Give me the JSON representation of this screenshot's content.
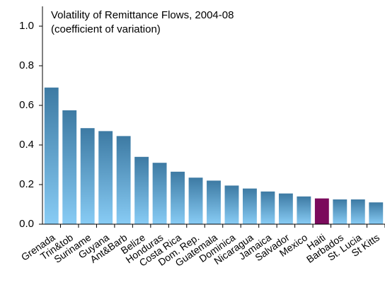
{
  "chart_data": {
    "type": "bar",
    "title": "Volatility of Remittance Flows, 2004-08",
    "subtitle": "(coefficient of variation)",
    "categories": [
      "Grenada",
      "Trin&tob",
      "Suriname",
      "Guyana",
      "Ant&Barb",
      "Belize",
      "Honduras",
      "Costa Rica",
      "Dom. Rep.",
      "Guatemala",
      "Dominica",
      "Nicaragua",
      "Jamaica",
      "Salvador",
      "Mexico",
      "Haiti",
      "Barbados",
      "St. Lucia",
      "St Kitts"
    ],
    "values": [
      0.69,
      0.575,
      0.485,
      0.47,
      0.445,
      0.34,
      0.31,
      0.265,
      0.235,
      0.22,
      0.195,
      0.18,
      0.165,
      0.155,
      0.14,
      0.13,
      0.125,
      0.125,
      0.11
    ],
    "colors": [
      "#3d7aa3",
      "#3d7aa3",
      "#3d7aa3",
      "#3d7aa3",
      "#3d7aa3",
      "#3d7aa3",
      "#3d7aa3",
      "#3d7aa3",
      "#3d7aa3",
      "#3d7aa3",
      "#3d7aa3",
      "#3d7aa3",
      "#3d7aa3",
      "#3d7aa3",
      "#3d7aa3",
      "#7b0a5c",
      "#3d7aa3",
      "#3d7aa3",
      "#3d7aa3"
    ],
    "ylim": [
      0,
      1.1
    ],
    "yticks": [
      {
        "value": 0,
        "label": "0.0"
      },
      0.2,
      0.4,
      0.6,
      0.8,
      {
        "value": 1,
        "label": "1.0"
      }
    ],
    "grid": false
  }
}
